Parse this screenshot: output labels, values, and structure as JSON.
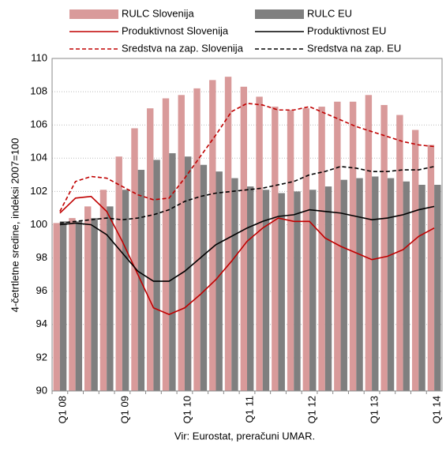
{
  "chart_data": {
    "type": "combo",
    "y_label": "4-četrtletne sredine, indeksi 2007=100",
    "source": "Vir: Eurostat, preračuni UMAR.",
    "categories": [
      "Q1 08",
      null,
      null,
      null,
      "Q1 09",
      null,
      null,
      null,
      "Q1 10",
      null,
      null,
      null,
      "Q1 11",
      null,
      null,
      null,
      "Q1 12",
      null,
      null,
      null,
      "Q1 13",
      null,
      null,
      null,
      "Q1 14"
    ],
    "ylim": [
      90,
      110
    ],
    "yticks": [
      90,
      92,
      94,
      96,
      98,
      100,
      102,
      104,
      106,
      108,
      110
    ],
    "grid": true,
    "series": [
      {
        "name": "RULC Slovenija",
        "style": "bar",
        "color": "#d99a9a",
        "values": [
          100.1,
          100.4,
          101.1,
          102.1,
          104.1,
          105.8,
          107.0,
          107.6,
          107.8,
          108.2,
          108.7,
          108.9,
          108.3,
          107.7,
          107.1,
          106.9,
          107.0,
          107.1,
          107.4,
          107.4,
          107.8,
          107.2,
          106.6,
          105.7,
          104.8
        ]
      },
      {
        "name": "RULC EU",
        "style": "bar",
        "color": "#7f7f7f",
        "values": [
          100.2,
          100.2,
          100.4,
          101.1,
          102.1,
          103.3,
          103.9,
          104.3,
          104.1,
          103.6,
          103.2,
          102.8,
          102.3,
          102.1,
          101.9,
          102.0,
          102.1,
          102.3,
          102.7,
          102.8,
          102.9,
          102.8,
          102.6,
          102.4,
          102.4
        ]
      },
      {
        "name": "Produktivnost Slovenija",
        "style": "line",
        "dash": false,
        "color": "#c00000",
        "values": [
          100.7,
          101.6,
          101.7,
          100.8,
          99.0,
          97.0,
          95.0,
          94.6,
          95.0,
          95.8,
          96.7,
          97.8,
          99.0,
          99.8,
          100.4,
          100.2,
          100.2,
          99.2,
          98.7,
          98.3,
          97.9,
          98.1,
          98.5,
          99.3,
          99.8
        ]
      },
      {
        "name": "Produktivnost EU",
        "style": "line",
        "dash": false,
        "color": "#000000",
        "values": [
          100.0,
          100.1,
          100.0,
          99.4,
          98.3,
          97.2,
          96.6,
          96.6,
          97.2,
          98.0,
          98.8,
          99.3,
          99.8,
          100.2,
          100.5,
          100.6,
          100.9,
          100.8,
          100.7,
          100.5,
          100.3,
          100.4,
          100.6,
          100.9,
          101.1
        ]
      },
      {
        "name": "Sredstva na zap. Slovenija",
        "style": "line",
        "dash": true,
        "color": "#c00000",
        "values": [
          100.8,
          102.6,
          102.9,
          102.8,
          102.3,
          101.8,
          101.5,
          101.6,
          102.8,
          104.1,
          105.4,
          106.8,
          107.3,
          107.2,
          106.9,
          106.9,
          107.1,
          106.7,
          106.3,
          105.9,
          105.6,
          105.3,
          105.0,
          104.8,
          104.7
        ]
      },
      {
        "name": "Sredstva na zap. EU",
        "style": "line",
        "dash": true,
        "color": "#000000",
        "values": [
          100.1,
          100.2,
          100.3,
          100.4,
          100.3,
          100.4,
          100.6,
          100.9,
          101.4,
          101.7,
          101.9,
          102.0,
          102.1,
          102.2,
          102.4,
          102.6,
          103.0,
          103.2,
          103.5,
          103.4,
          103.2,
          103.2,
          103.3,
          103.3,
          103.5
        ]
      }
    ]
  }
}
